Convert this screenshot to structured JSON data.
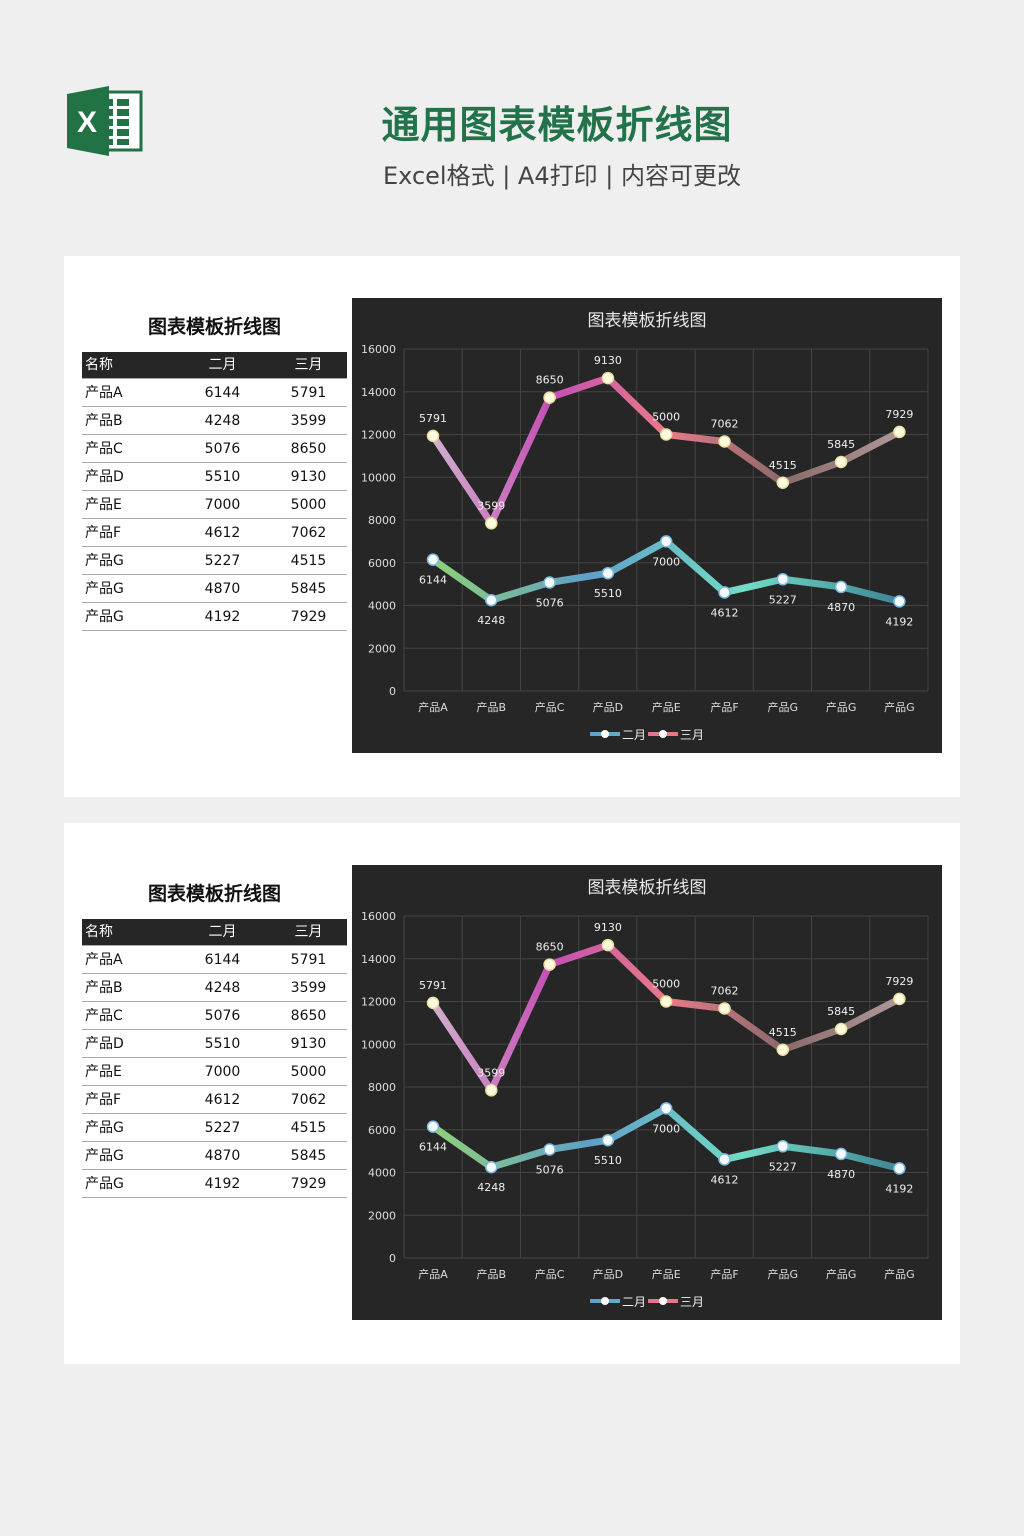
{
  "header": {
    "title": "通用图表模板折线图",
    "subtitle": "Excel格式 | A4打印 | 内容可更改",
    "logo_letter": "X"
  },
  "table": {
    "title": "图表模板折线图",
    "columns": [
      "名称",
      "二月",
      "三月"
    ],
    "rows": [
      [
        "产品A",
        "6144",
        "5791"
      ],
      [
        "产品B",
        "4248",
        "3599"
      ],
      [
        "产品C",
        "5076",
        "8650"
      ],
      [
        "产品D",
        "5510",
        "9130"
      ],
      [
        "产品E",
        "7000",
        "5000"
      ],
      [
        "产品F",
        "4612",
        "7062"
      ],
      [
        "产品G",
        "5227",
        "4515"
      ],
      [
        "产品G",
        "4870",
        "5845"
      ],
      [
        "产品G",
        "4192",
        "7929"
      ]
    ]
  },
  "chart_data": {
    "type": "line",
    "stacked": true,
    "title": "图表模板折线图",
    "categories": [
      "产品A",
      "产品B",
      "产品C",
      "产品D",
      "产品E",
      "产品F",
      "产品G",
      "产品G",
      "产品G"
    ],
    "series": [
      {
        "name": "二月",
        "values": [
          6144,
          4248,
          5076,
          5510,
          7000,
          4612,
          5227,
          4870,
          4192
        ],
        "colors": [
          "#8fd07a",
          "#5f9fc8",
          "#72dcc4",
          "#3f8596"
        ]
      },
      {
        "name": "三月",
        "values": [
          5791,
          3599,
          8650,
          9130,
          5000,
          7062,
          4515,
          5845,
          7929
        ],
        "colors": [
          "#d0b0cc",
          "#c44fb4",
          "#e87a88",
          "#8a6a6a",
          "#b09898"
        ]
      }
    ],
    "yticks": [
      0,
      2000,
      4000,
      6000,
      8000,
      10000,
      12000,
      14000,
      16000
    ],
    "ylim": [
      0,
      16000
    ],
    "grid": true,
    "legend": "bottom"
  }
}
